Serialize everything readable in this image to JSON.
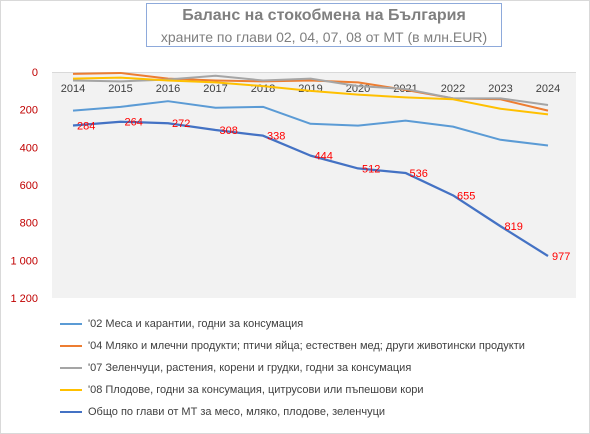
{
  "chart_data": {
    "type": "line",
    "title": "Баланс на стокобмена на България",
    "subtitle": "храните по глави 02, 04, 07, 08 от МТ (в млн.EUR)",
    "x": [
      "2014",
      "2015",
      "2016",
      "2017",
      "2018",
      "2019",
      "2020",
      "2021",
      "2022",
      "2023",
      "2024"
    ],
    "y_tick_labels": [
      "0",
      "200",
      "400",
      "600",
      "800",
      "1 000",
      "1 200"
    ],
    "y_ticks": [
      0,
      200,
      400,
      600,
      800,
      1000,
      1200
    ],
    "ylim": [
      0,
      1200
    ],
    "y_inverted": true,
    "grid": false,
    "legend_position": "bottom",
    "series": [
      {
        "name": "'02 Меса и карантии, годни за консумация",
        "color": "#5b9bd5",
        "values": [
          205,
          185,
          155,
          190,
          185,
          275,
          285,
          258,
          290,
          360,
          390
        ]
      },
      {
        "name": "'04 Мляко и млечни продукти; птичи яйца; естествен мед; други животински продукти",
        "color": "#ed7d31",
        "values": [
          10,
          5,
          35,
          45,
          50,
          45,
          55,
          95,
          140,
          145,
          205
        ]
      },
      {
        "name": "'07 Зеленчуци, растения, корени и грудки, годни за консумация",
        "color": "#a5a5a5",
        "values": [
          45,
          50,
          40,
          20,
          45,
          35,
          75,
          90,
          140,
          140,
          175
        ]
      },
      {
        "name": "'08 Плодове, годни за консумация, цитрусови или пъпешови кори",
        "color": "#ffc000",
        "values": [
          35,
          30,
          45,
          55,
          75,
          100,
          120,
          135,
          145,
          195,
          225
        ]
      },
      {
        "name": "Общо по глави от МТ за месо, мляко, плодове, зеленчуци",
        "color": "#4472c4",
        "values": [
          284,
          264,
          272,
          308,
          338,
          444,
          512,
          536,
          655,
          819,
          977
        ],
        "data_labels": [
          "284",
          "264",
          "272",
          "308",
          "338",
          "444",
          "512",
          "536",
          "655",
          "819",
          "977"
        ],
        "data_label_color": "#ff0000"
      }
    ]
  }
}
